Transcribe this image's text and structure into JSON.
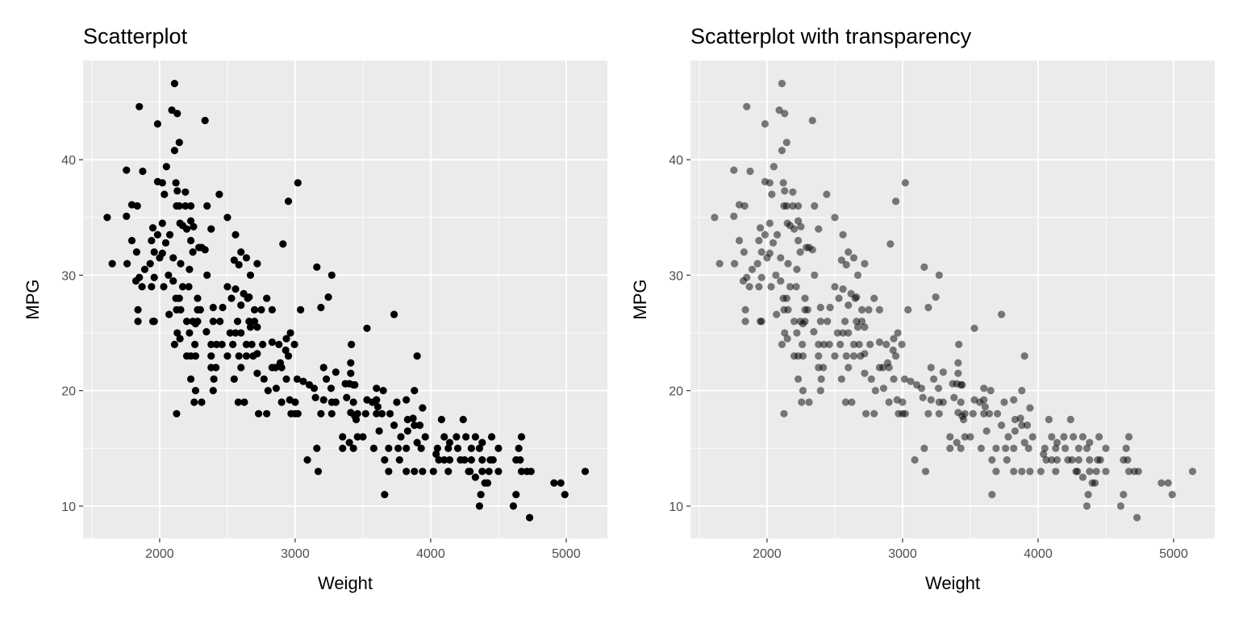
{
  "chart_data": [
    {
      "type": "scatter",
      "title": "Scatterplot",
      "xlabel": "Weight",
      "ylabel": "MPG",
      "xlim": [
        1435,
        5304
      ],
      "ylim": [
        7.2,
        48.6
      ],
      "xticks": [
        2000,
        3000,
        4000,
        5000
      ],
      "yticks": [
        10,
        20,
        30,
        40
      ],
      "grid": true,
      "point_color": "#000000",
      "alpha": 1,
      "points": [
        [
          2110,
          46.6
        ],
        [
          1850,
          44.6
        ],
        [
          2090,
          44.3
        ],
        [
          2130,
          44.0
        ],
        [
          1985,
          43.1
        ],
        [
          2335,
          43.4
        ],
        [
          2145,
          41.5
        ],
        [
          2110,
          40.8
        ],
        [
          2050,
          39.4
        ],
        [
          1755,
          39.1
        ],
        [
          1875,
          39.0
        ],
        [
          1985,
          38.1
        ],
        [
          2020,
          38.0
        ],
        [
          2120,
          38.0
        ],
        [
          2130,
          37.3
        ],
        [
          2190,
          37.2
        ],
        [
          2035,
          37.0
        ],
        [
          2440,
          37.0
        ],
        [
          2950,
          36.4
        ],
        [
          3020,
          38.0
        ],
        [
          1795,
          36.1
        ],
        [
          1835,
          36.0
        ],
        [
          2125,
          36.0
        ],
        [
          2145,
          36.0
        ],
        [
          2190,
          36.0
        ],
        [
          2230,
          36.0
        ],
        [
          2350,
          36.0
        ],
        [
          1613,
          35.0
        ],
        [
          1755,
          35.1
        ],
        [
          2500,
          35.0
        ],
        [
          2020,
          34.5
        ],
        [
          2150,
          34.5
        ],
        [
          2170,
          34.3
        ],
        [
          2230,
          34.7
        ],
        [
          2200,
          34.0
        ],
        [
          1950,
          34.1
        ],
        [
          2250,
          34.2
        ],
        [
          2380,
          34.0
        ],
        [
          1985,
          33.5
        ],
        [
          2075,
          33.5
        ],
        [
          2560,
          33.5
        ],
        [
          1795,
          33.0
        ],
        [
          1940,
          33.0
        ],
        [
          2230,
          33.0
        ],
        [
          2045,
          32.8
        ],
        [
          2910,
          32.7
        ],
        [
          2290,
          32.4
        ],
        [
          2310,
          32.4
        ],
        [
          2335,
          32.2
        ],
        [
          2245,
          32.0
        ],
        [
          2600,
          32.0
        ],
        [
          1830,
          32.0
        ],
        [
          1960,
          32.0
        ],
        [
          2020,
          31.9
        ],
        [
          2000,
          31.5
        ],
        [
          2100,
          31.5
        ],
        [
          2550,
          31.3
        ],
        [
          1650,
          31.0
        ],
        [
          1760,
          31.0
        ],
        [
          1930,
          31.0
        ],
        [
          2155,
          31.0
        ],
        [
          2720,
          31.0
        ],
        [
          2640,
          31.5
        ],
        [
          2585,
          30.9
        ],
        [
          2220,
          30.5
        ],
        [
          1890,
          30.5
        ],
        [
          2350,
          30.0
        ],
        [
          2065,
          30.0
        ],
        [
          3270,
          30.0
        ],
        [
          3160,
          30.7
        ],
        [
          2670,
          30.0
        ],
        [
          1850,
          29.8
        ],
        [
          1960,
          29.8
        ],
        [
          2100,
          29.5
        ],
        [
          1825,
          29.5
        ],
        [
          2170,
          29.0
        ],
        [
          2030,
          29.0
        ],
        [
          2215,
          29.0
        ],
        [
          1870,
          29.0
        ],
        [
          1940,
          29.0
        ],
        [
          2500,
          29.0
        ],
        [
          2560,
          28.8
        ],
        [
          2620,
          28.4
        ],
        [
          2660,
          28.1
        ],
        [
          3245,
          28.1
        ],
        [
          2120,
          28.0
        ],
        [
          2145,
          28.0
        ],
        [
          2280,
          28.0
        ],
        [
          2530,
          28.0
        ],
        [
          2650,
          28.0
        ],
        [
          2790,
          28.0
        ],
        [
          3190,
          27.2
        ],
        [
          2125,
          27.0
        ],
        [
          2155,
          27.0
        ],
        [
          1840,
          27.0
        ],
        [
          2280,
          27.0
        ],
        [
          2300,
          27.0
        ],
        [
          2395,
          27.2
        ],
        [
          2465,
          27.2
        ],
        [
          2600,
          27.4
        ],
        [
          2700,
          27.0
        ],
        [
          2750,
          27.0
        ],
        [
          2830,
          27.0
        ],
        [
          3040,
          27.0
        ],
        [
          3730,
          26.6
        ],
        [
          2070,
          26.6
        ],
        [
          2200,
          26.0
        ],
        [
          1840,
          26.0
        ],
        [
          1950,
          26.0
        ],
        [
          1960,
          26.0
        ],
        [
          2245,
          26.0
        ],
        [
          2280,
          26.0
        ],
        [
          2265,
          25.8
        ],
        [
          2395,
          26.0
        ],
        [
          2445,
          26.0
        ],
        [
          2575,
          26.0
        ],
        [
          2660,
          26.0
        ],
        [
          2700,
          26.0
        ],
        [
          2670,
          25.5
        ],
        [
          2720,
          25.5
        ],
        [
          2965,
          25.0
        ],
        [
          3530,
          25.4
        ],
        [
          2130,
          25.0
        ],
        [
          2220,
          25.0
        ],
        [
          2345,
          25.1
        ],
        [
          2520,
          25.0
        ],
        [
          2560,
          25.0
        ],
        [
          2600,
          25.0
        ],
        [
          2935,
          24.5
        ],
        [
          2880,
          24.0
        ],
        [
          2830,
          24.2
        ],
        [
          2995,
          24.0
        ],
        [
          3415,
          24.0
        ],
        [
          2110,
          24.0
        ],
        [
          2150,
          24.5
        ],
        [
          2260,
          24.0
        ],
        [
          2380,
          24.0
        ],
        [
          2420,
          24.0
        ],
        [
          2460,
          24.0
        ],
        [
          2540,
          24.0
        ],
        [
          2640,
          24.0
        ],
        [
          2680,
          24.0
        ],
        [
          2760,
          24.0
        ],
        [
          2930,
          23.5
        ],
        [
          3900,
          23.0
        ],
        [
          2200,
          23.0
        ],
        [
          2230,
          23.0
        ],
        [
          2265,
          23.0
        ],
        [
          2380,
          23.0
        ],
        [
          2500,
          23.0
        ],
        [
          2585,
          23.0
        ],
        [
          2640,
          23.0
        ],
        [
          2690,
          23.0
        ],
        [
          2720,
          23.2
        ],
        [
          2950,
          23.0
        ],
        [
          2890,
          22.4
        ],
        [
          3410,
          22.4
        ],
        [
          2380,
          22.0
        ],
        [
          2415,
          22.0
        ],
        [
          2600,
          22.0
        ],
        [
          2830,
          22.0
        ],
        [
          2855,
          22.0
        ],
        [
          2900,
          22.0
        ],
        [
          3210,
          22.0
        ],
        [
          3300,
          21.6
        ],
        [
          3410,
          21.5
        ],
        [
          2230,
          21.0
        ],
        [
          2400,
          21.0
        ],
        [
          2550,
          21.0
        ],
        [
          2720,
          21.5
        ],
        [
          2770,
          21.0
        ],
        [
          2935,
          21.0
        ],
        [
          3015,
          21.0
        ],
        [
          3060,
          20.8
        ],
        [
          3230,
          21.0
        ],
        [
          3370,
          20.6
        ],
        [
          3440,
          20.5
        ],
        [
          3600,
          20.2
        ],
        [
          3400,
          20.6
        ],
        [
          2265,
          20.0
        ],
        [
          2395,
          20.0
        ],
        [
          2800,
          20.0
        ],
        [
          2860,
          20.2
        ],
        [
          3105,
          20.5
        ],
        [
          3140,
          20.2
        ],
        [
          3265,
          20.2
        ],
        [
          3430,
          20.5
        ],
        [
          3650,
          20.0
        ],
        [
          3880,
          20.0
        ],
        [
          2255,
          19.0
        ],
        [
          2310,
          19.0
        ],
        [
          2625,
          19.0
        ],
        [
          2900,
          19.0
        ],
        [
          2960,
          19.2
        ],
        [
          3000,
          19.0
        ],
        [
          3150,
          19.4
        ],
        [
          3210,
          19.2
        ],
        [
          3270,
          19.0
        ],
        [
          3300,
          19.0
        ],
        [
          3380,
          19.4
        ],
        [
          3430,
          19.0
        ],
        [
          3530,
          19.2
        ],
        [
          3570,
          19.0
        ],
        [
          3600,
          19.2
        ],
        [
          3750,
          19.0
        ],
        [
          3820,
          19.2
        ],
        [
          3940,
          18.5
        ],
        [
          3610,
          18.6
        ],
        [
          2580,
          19.0
        ],
        [
          2125,
          18.0
        ],
        [
          2730,
          18.0
        ],
        [
          2790,
          18.0
        ],
        [
          2970,
          18.0
        ],
        [
          3000,
          18.0
        ],
        [
          3020,
          18.0
        ],
        [
          3190,
          18.0
        ],
        [
          3270,
          18.0
        ],
        [
          3410,
          18.1
        ],
        [
          3440,
          17.8
        ],
        [
          3460,
          18.0
        ],
        [
          3520,
          18.0
        ],
        [
          3600,
          18.0
        ],
        [
          3640,
          18.0
        ],
        [
          3700,
          18.0
        ],
        [
          3830,
          17.5
        ],
        [
          3870,
          17.6
        ],
        [
          3920,
          17.0
        ],
        [
          4080,
          17.5
        ],
        [
          4240,
          17.5
        ],
        [
          3450,
          17.5
        ],
        [
          3730,
          17.0
        ],
        [
          3830,
          16.5
        ],
        [
          3880,
          17.0
        ],
        [
          3620,
          16.5
        ],
        [
          3350,
          16.0
        ],
        [
          3460,
          16.0
        ],
        [
          3500,
          16.0
        ],
        [
          3960,
          16.0
        ],
        [
          4100,
          16.0
        ],
        [
          4190,
          16.0
        ],
        [
          4260,
          16.0
        ],
        [
          4330,
          16.0
        ],
        [
          4450,
          16.0
        ],
        [
          4670,
          16.0
        ],
        [
          3780,
          16.0
        ],
        [
          4140,
          15.5
        ],
        [
          4380,
          15.5
        ],
        [
          3400,
          15.5
        ],
        [
          3430,
          15.0
        ],
        [
          3350,
          15.0
        ],
        [
          3160,
          15.0
        ],
        [
          3580,
          15.0
        ],
        [
          3690,
          15.0
        ],
        [
          3760,
          15.0
        ],
        [
          3820,
          15.0
        ],
        [
          3930,
          15.0
        ],
        [
          4050,
          15.0
        ],
        [
          4130,
          15.0
        ],
        [
          4200,
          15.0
        ],
        [
          4300,
          15.0
        ],
        [
          4360,
          15.0
        ],
        [
          4500,
          15.0
        ],
        [
          4650,
          15.0
        ],
        [
          3900,
          15.5
        ],
        [
          4040,
          14.5
        ],
        [
          3090,
          14.0
        ],
        [
          3660,
          14.0
        ],
        [
          3770,
          14.0
        ],
        [
          4060,
          14.0
        ],
        [
          4100,
          14.0
        ],
        [
          4140,
          14.0
        ],
        [
          4220,
          14.0
        ],
        [
          4250,
          14.0
        ],
        [
          4300,
          14.0
        ],
        [
          4380,
          14.0
        ],
        [
          4440,
          14.0
        ],
        [
          4460,
          14.0
        ],
        [
          4630,
          14.0
        ],
        [
          4660,
          14.0
        ],
        [
          3170,
          13.0
        ],
        [
          3690,
          13.0
        ],
        [
          3820,
          13.0
        ],
        [
          3880,
          13.0
        ],
        [
          3940,
          13.0
        ],
        [
          4020,
          13.0
        ],
        [
          4130,
          13.0
        ],
        [
          4280,
          13.0
        ],
        [
          4290,
          13.0
        ],
        [
          4380,
          13.0
        ],
        [
          4430,
          13.0
        ],
        [
          4500,
          13.0
        ],
        [
          4670,
          13.0
        ],
        [
          4710,
          13.0
        ],
        [
          4740,
          13.0
        ],
        [
          5140,
          13.0
        ],
        [
          4330,
          12.5
        ],
        [
          4400,
          12.0
        ],
        [
          4420,
          12.0
        ],
        [
          4910,
          12.0
        ],
        [
          4960,
          12.0
        ],
        [
          3660,
          11.0
        ],
        [
          4370,
          11.0
        ],
        [
          4630,
          11.0
        ],
        [
          4990,
          11.0
        ],
        [
          4360,
          10.0
        ],
        [
          4610,
          10.0
        ],
        [
          4730,
          9.0
        ]
      ]
    },
    {
      "type": "scatter",
      "title": "Scatterplot with transparency",
      "xlabel": "Weight",
      "ylabel": "MPG",
      "xlim": [
        1435,
        5304
      ],
      "ylim": [
        7.2,
        48.6
      ],
      "xticks": [
        2000,
        3000,
        4000,
        5000
      ],
      "yticks": [
        10,
        20,
        30,
        40
      ],
      "grid": true,
      "point_color": "#000000",
      "alpha": 0.5,
      "points_same_as_panel": 0
    }
  ],
  "colors": {
    "panel_bg": "#EBEBEB",
    "grid": "#FFFFFF",
    "tick_text": "#4D4D4D",
    "tick_mark": "#333333"
  }
}
